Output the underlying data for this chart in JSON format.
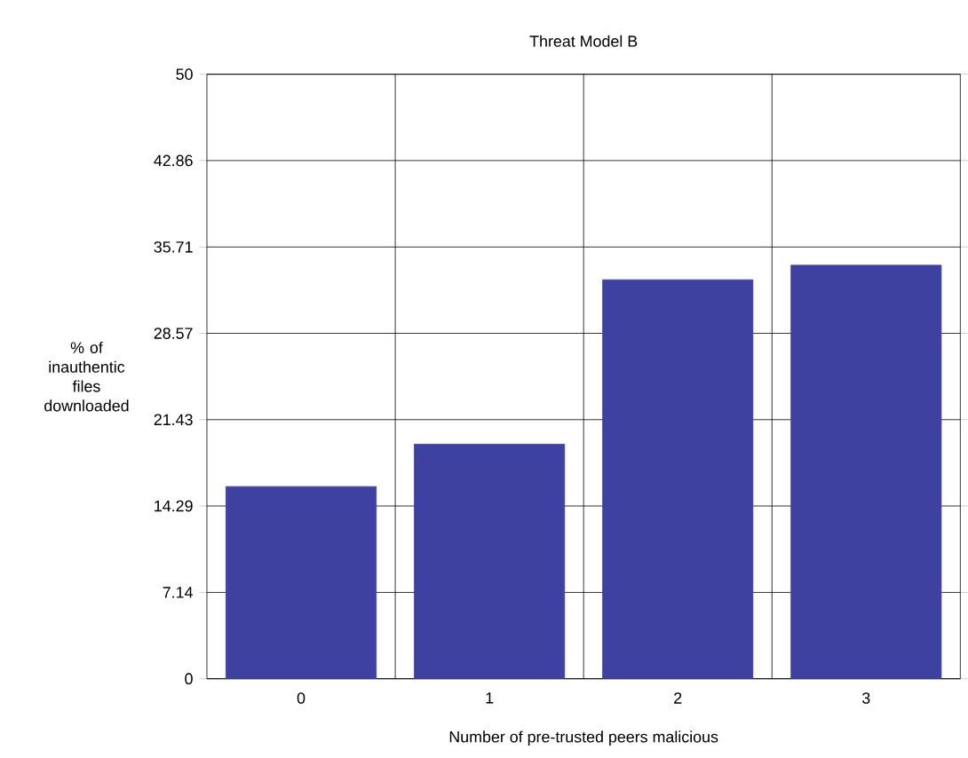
{
  "chart_data": {
    "type": "bar",
    "title": "Threat Model B",
    "xlabel": "Number of pre-trusted peers malicious",
    "ylabel": "% of inauthentic files downloaded",
    "categories": [
      "0",
      "1",
      "2",
      "3"
    ],
    "values": [
      15.9,
      19.4,
      33.0,
      34.2
    ],
    "color": "#3f41a0",
    "ylim": [
      0,
      50
    ],
    "yticks": [
      0,
      7.14,
      14.29,
      21.43,
      28.57,
      35.71,
      42.86,
      50
    ],
    "grid": true
  }
}
